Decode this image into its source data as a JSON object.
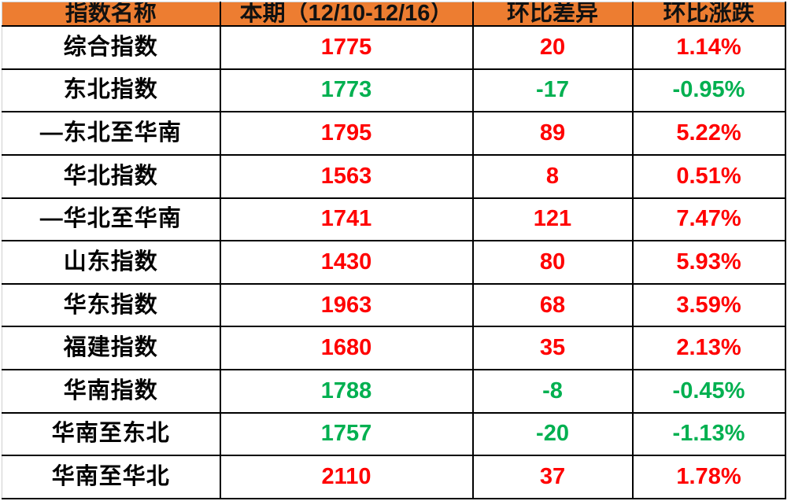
{
  "table": {
    "columns": [
      "指数名称",
      "本期（12/10-12/16）",
      "环比差异",
      "环比涨跌"
    ],
    "colors": {
      "header_bg": "#ed7d31",
      "header_text": "#111111",
      "up": "#ff0000",
      "down": "#00b050",
      "border": "#000000"
    },
    "rows": [
      {
        "name": "综合指数",
        "current": "1775",
        "diff": "20",
        "change": "1.14%",
        "trend": "up"
      },
      {
        "name": "东北指数",
        "current": "1773",
        "diff": "-17",
        "change": "-0.95%",
        "trend": "down"
      },
      {
        "name": "—东北至华南",
        "current": "1795",
        "diff": "89",
        "change": "5.22%",
        "trend": "up"
      },
      {
        "name": "华北指数",
        "current": "1563",
        "diff": "8",
        "change": "0.51%",
        "trend": "up"
      },
      {
        "name": "—华北至华南",
        "current": "1741",
        "diff": "121",
        "change": "7.47%",
        "trend": "up"
      },
      {
        "name": "山东指数",
        "current": "1430",
        "diff": "80",
        "change": "5.93%",
        "trend": "up"
      },
      {
        "name": "华东指数",
        "current": "1963",
        "diff": "68",
        "change": "3.59%",
        "trend": "up"
      },
      {
        "name": "福建指数",
        "current": "1680",
        "diff": "35",
        "change": "2.13%",
        "trend": "up"
      },
      {
        "name": "华南指数",
        "current": "1788",
        "diff": "-8",
        "change": "-0.45%",
        "trend": "down"
      },
      {
        "name": "华南至东北",
        "current": "1757",
        "diff": "-20",
        "change": "-1.13%",
        "trend": "down"
      },
      {
        "name": "华南至华北",
        "current": "2110",
        "diff": "37",
        "change": "1.78%",
        "trend": "up"
      }
    ]
  }
}
